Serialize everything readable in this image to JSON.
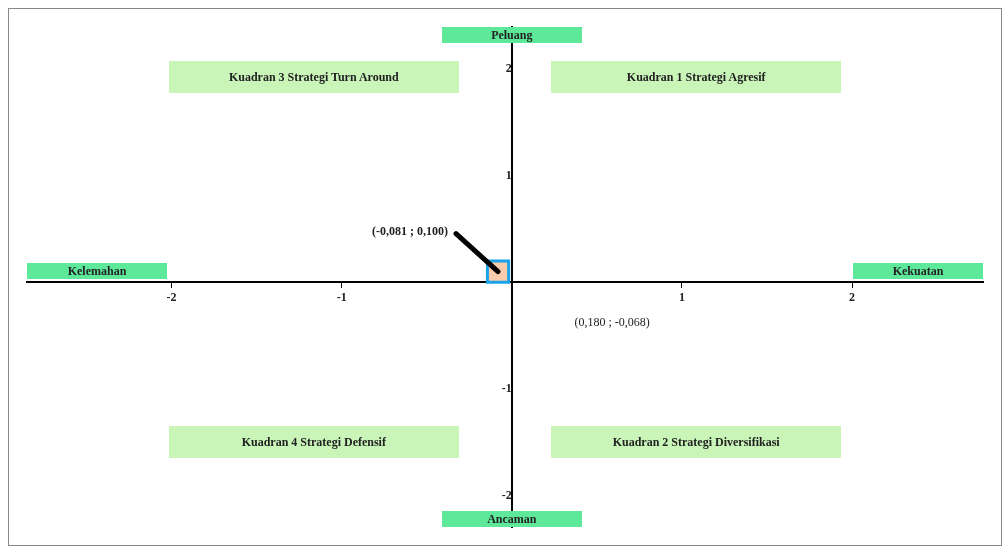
{
  "chart_data": {
    "type": "scatter",
    "xlabel": "Kekuatan",
    "ylabel": "Peluang",
    "x": [
      -0.081
    ],
    "series": [
      {
        "color": "#f8cbad",
        "values": [
          0.1
        ]
      }
    ],
    "marker": "square",
    "xlim": [
      -2.85,
      2.77
    ],
    "ylim": [
      -2.29,
      2.39
    ],
    "xticks": [
      -2,
      -1,
      1,
      2
    ],
    "yticks": [
      -2,
      -1,
      1,
      2
    ],
    "grid": false,
    "legend": false,
    "annotations": [
      "Kuadran 3 Strategi Turn Around",
      "Kuadran 1 Strategi Agresif",
      "Kuadran 4 Strategi Defensif",
      "Kuadran 2 Strategi Diversifikasi",
      "Kelemahan",
      "Ancaman",
      {
        "text": "(-0,081 ; 0,100)",
        "x": -0.081,
        "y": 0.1
      },
      "(0,180 ; -0,068)"
    ]
  }
}
